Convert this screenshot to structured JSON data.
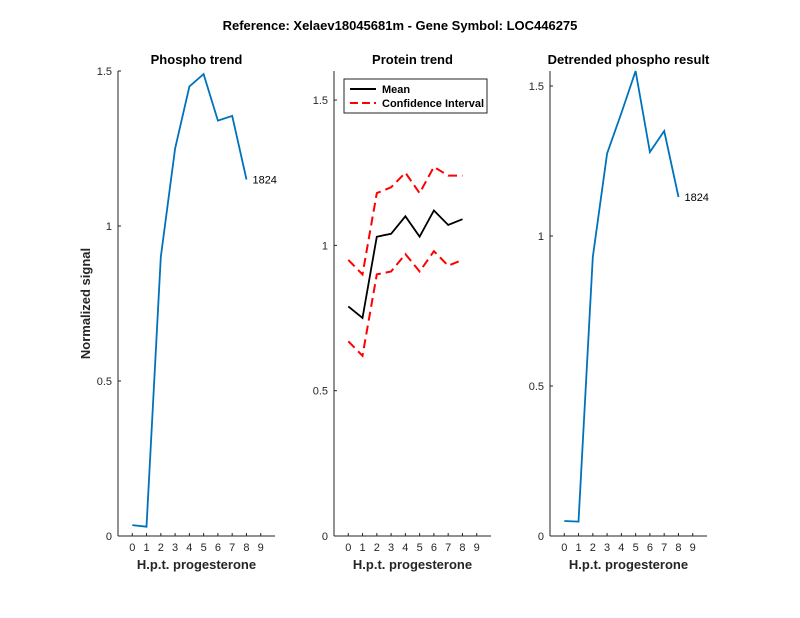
{
  "suptitle": "Reference:  Xelaev18045681m - Gene Symbol:  LOC446275",
  "colors": {
    "series_blue": "#0072BD",
    "mean_black": "#000000",
    "ci_red": "#FF0000",
    "axis": "#262626"
  },
  "chart_data": [
    {
      "type": "line",
      "title": "Phospho trend",
      "xlabel": "H.p.t. progesterone",
      "ylabel": "Normalized signal",
      "xlim": [
        -1,
        10
      ],
      "ylim": [
        0,
        1.5
      ],
      "xticks": [
        "0",
        "1",
        "2",
        "3",
        "4",
        "5",
        "6",
        "7",
        "8",
        "9"
      ],
      "yticks": [
        "0",
        "0.5",
        "1",
        "1.5"
      ],
      "grid": false,
      "series": [
        {
          "color": "#0072BD",
          "dash": "solid",
          "x": [
            0,
            1,
            2,
            3,
            4,
            5,
            6,
            7,
            8,
            9
          ],
          "y": [
            0.035,
            0.03,
            0.9,
            1.25,
            1.45,
            1.49,
            1.34,
            1.355,
            1.15,
            null
          ]
        }
      ],
      "annotation": {
        "text": "1824",
        "x": 8,
        "y": 1.15
      }
    },
    {
      "type": "line",
      "title": "Protein trend",
      "xlabel": "H.p.t. progesterone",
      "ylabel": "",
      "xlim": [
        -1,
        10
      ],
      "ylim": [
        0,
        1.6
      ],
      "xticks": [
        "0",
        "1",
        "2",
        "3",
        "4",
        "5",
        "6",
        "7",
        "8",
        "9"
      ],
      "yticks": [
        "0",
        "0.5",
        "1",
        "1.5"
      ],
      "grid": false,
      "legend_position": "top-left",
      "series": [
        {
          "name": "Mean",
          "color": "#000000",
          "dash": "solid",
          "x": [
            0,
            1,
            2,
            3,
            4,
            5,
            6,
            7,
            8,
            9
          ],
          "y": [
            0.79,
            0.75,
            1.03,
            1.04,
            1.1,
            1.03,
            1.12,
            1.07,
            1.09,
            null
          ]
        },
        {
          "name": "Confidence Interval",
          "color": "#FF0000",
          "dash": "dashed",
          "x": [
            0,
            1,
            2,
            3,
            4,
            5,
            6,
            7,
            8,
            9
          ],
          "y": [
            0.95,
            0.9,
            1.18,
            1.2,
            1.25,
            1.18,
            1.27,
            1.24,
            1.24,
            null
          ]
        },
        {
          "color": "#FF0000",
          "dash": "dashed",
          "x": [
            0,
            1,
            2,
            3,
            4,
            5,
            6,
            7,
            8,
            9
          ],
          "y": [
            0.67,
            0.62,
            0.9,
            0.91,
            0.97,
            0.91,
            0.98,
            0.93,
            0.95,
            null
          ]
        }
      ]
    },
    {
      "type": "line",
      "title": "Detrended phospho result",
      "xlabel": "H.p.t. progesterone",
      "ylabel": "",
      "xlim": [
        -1,
        10
      ],
      "ylim": [
        0,
        1.55
      ],
      "xticks": [
        "0",
        "1",
        "2",
        "3",
        "4",
        "5",
        "6",
        "7",
        "8",
        "9"
      ],
      "yticks": [
        "0",
        "0.5",
        "1",
        "1.5"
      ],
      "grid": false,
      "series": [
        {
          "color": "#0072BD",
          "dash": "solid",
          "x": [
            0,
            1,
            2,
            3,
            4,
            5,
            6,
            7,
            8,
            9
          ],
          "y": [
            0.05,
            0.048,
            0.93,
            1.275,
            1.41,
            1.55,
            1.28,
            1.35,
            1.13,
            null
          ]
        }
      ],
      "annotation": {
        "text": "1824",
        "x": 8,
        "y": 1.13
      }
    }
  ]
}
